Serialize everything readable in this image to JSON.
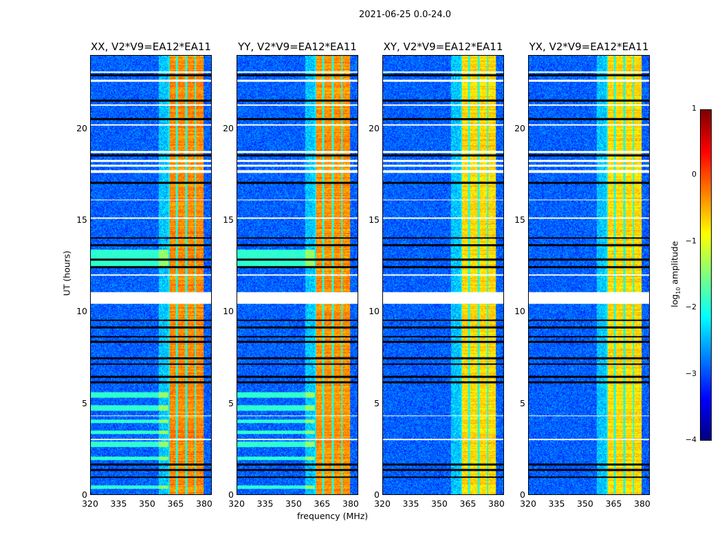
{
  "suptitle": "2021-06-25 0.0-24.0",
  "chart_data": {
    "type": "heatmap",
    "xlabel": "frequency (MHz)",
    "ylabel": "UT (hours)",
    "xlim": [
      320,
      384
    ],
    "ylim": [
      0,
      24
    ],
    "xticks": [
      "320",
      "335",
      "350",
      "365",
      "380"
    ],
    "xtick_values": [
      320,
      335,
      350,
      365,
      380
    ],
    "yticks": [
      "0",
      "5",
      "10",
      "15",
      "20"
    ],
    "ytick_values": [
      0,
      5,
      10,
      15,
      20
    ],
    "panels": [
      {
        "title": "XX, V2*V9=EA12*EA11",
        "band_level": -0.3,
        "bright_rows": true
      },
      {
        "title": "YY, V2*V9=EA12*EA11",
        "band_level": -0.35,
        "bright_rows": true
      },
      {
        "title": "XY, V2*V9=EA12*EA11",
        "band_level": -0.7,
        "bright_rows": false
      },
      {
        "title": "YX, V2*V9=EA12*EA11",
        "band_level": -0.7,
        "bright_rows": false
      }
    ],
    "background_level": -2.9,
    "hot_band_mhz": [
      361,
      380
    ],
    "dip_freqs_mhz": [
      365.5,
      370.5,
      375.5
    ],
    "flagged_white_hours": [
      [
        10.45,
        11.1
      ],
      [
        17.6,
        17.75
      ],
      [
        17.95,
        18.05
      ],
      [
        18.2,
        18.3
      ],
      [
        18.7,
        18.8
      ],
      [
        22.6,
        22.7
      ],
      [
        20.2,
        20.25
      ],
      [
        15.1,
        15.15
      ],
      [
        12.0,
        12.05
      ],
      [
        4.3,
        4.35
      ],
      [
        3.0,
        3.05
      ],
      [
        16.1,
        16.15
      ],
      [
        21.3,
        21.35
      ],
      [
        23.1,
        23.15
      ]
    ],
    "flagged_black_hours": [
      [
        0.9,
        1.0
      ],
      [
        1.3,
        1.4
      ],
      [
        1.6,
        1.7
      ],
      [
        6.1,
        6.2
      ],
      [
        6.4,
        6.5
      ],
      [
        7.1,
        7.2
      ],
      [
        7.4,
        7.5
      ],
      [
        8.3,
        8.4
      ],
      [
        8.6,
        8.7
      ],
      [
        9.1,
        9.2
      ],
      [
        9.5,
        9.6
      ],
      [
        12.4,
        12.5
      ],
      [
        12.8,
        12.9
      ],
      [
        13.6,
        13.7
      ],
      [
        14.0,
        14.1
      ],
      [
        17.0,
        17.1
      ],
      [
        18.5,
        18.6
      ],
      [
        20.5,
        20.6
      ],
      [
        21.5,
        21.6
      ],
      [
        22.9,
        23.0
      ]
    ],
    "bright_row_hours": [
      [
        0.3,
        0.5
      ],
      [
        1.9,
        2.1
      ],
      [
        2.6,
        2.9
      ],
      [
        3.3,
        3.5
      ],
      [
        3.9,
        4.1
      ],
      [
        4.6,
        4.9
      ],
      [
        5.3,
        5.6
      ],
      [
        12.5,
        13.4
      ]
    ],
    "colorbar": {
      "label_main": "log",
      "label_sub": "10",
      "label_tail": " amplitude",
      "range": [
        -4,
        1
      ],
      "ticks": [
        "1",
        "0",
        "−1",
        "−2",
        "−3",
        "−4"
      ],
      "tick_values": [
        1,
        0,
        -1,
        -2,
        -3,
        -4
      ]
    }
  }
}
